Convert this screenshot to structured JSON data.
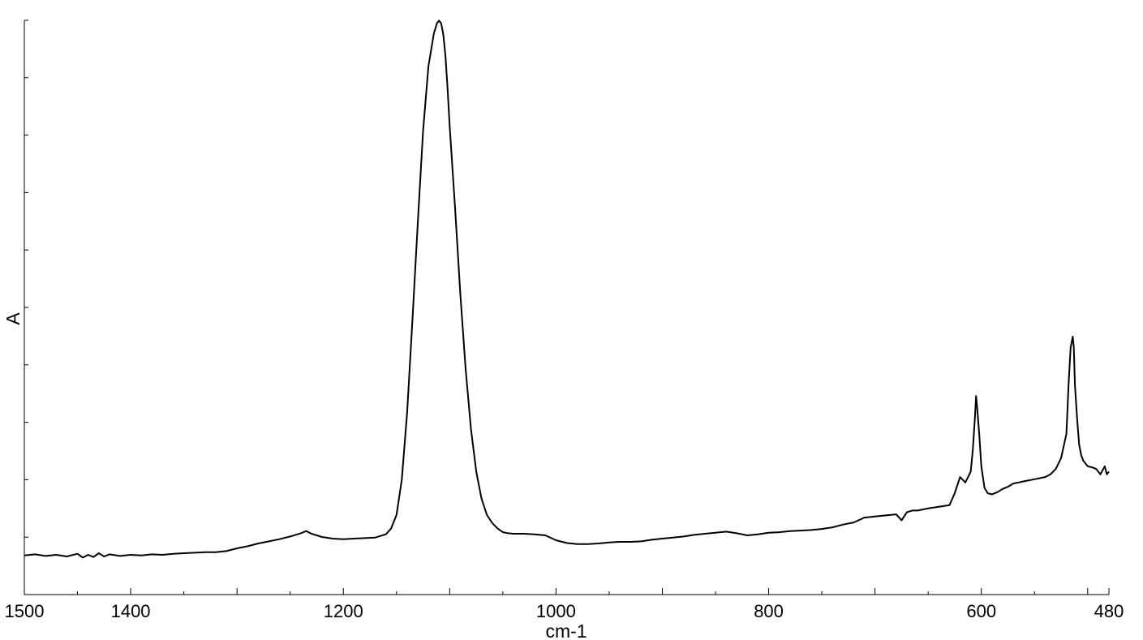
{
  "chart_data": {
    "type": "line",
    "title": "",
    "xlabel": "cm-1",
    "ylabel": "A",
    "xlim": [
      1500,
      480
    ],
    "x_reversed": true,
    "ylim": [
      0,
      1
    ],
    "grid": false,
    "legend": "none",
    "x_ticks": [
      1500,
      1400,
      1200,
      1000,
      800,
      600,
      480
    ],
    "line_color": "#000000",
    "series": [
      {
        "x": [
          1500,
          1490,
          1480,
          1470,
          1460,
          1450,
          1445,
          1440,
          1435,
          1430,
          1425,
          1420,
          1410,
          1400,
          1390,
          1380,
          1370,
          1360,
          1350,
          1340,
          1330,
          1320,
          1310,
          1300,
          1290,
          1280,
          1270,
          1260,
          1250,
          1240,
          1235,
          1230,
          1225,
          1220,
          1210,
          1200,
          1190,
          1180,
          1170,
          1160,
          1155,
          1150,
          1145,
          1140,
          1135,
          1130,
          1125,
          1120,
          1115,
          1112,
          1110,
          1108,
          1106,
          1104,
          1102,
          1100,
          1095,
          1090,
          1085,
          1080,
          1075,
          1070,
          1065,
          1060,
          1055,
          1050,
          1045,
          1040,
          1030,
          1020,
          1010,
          1000,
          990,
          980,
          970,
          960,
          950,
          940,
          930,
          920,
          910,
          900,
          890,
          880,
          870,
          860,
          850,
          840,
          830,
          820,
          810,
          800,
          790,
          780,
          770,
          760,
          750,
          740,
          730,
          720,
          710,
          700,
          690,
          680,
          675,
          670,
          665,
          660,
          650,
          640,
          630,
          625,
          620,
          615,
          612,
          610,
          608,
          606,
          605,
          604,
          602,
          600,
          597,
          594,
          590,
          585,
          580,
          575,
          570,
          565,
          560,
          555,
          550,
          545,
          540,
          535,
          530,
          525,
          520,
          518,
          516,
          514,
          513,
          512,
          510,
          508,
          506,
          504,
          502,
          500,
          496,
          492,
          488,
          484,
          482,
          480
        ],
        "y": [
          0.035,
          0.037,
          0.034,
          0.036,
          0.033,
          0.038,
          0.031,
          0.036,
          0.032,
          0.039,
          0.033,
          0.037,
          0.034,
          0.036,
          0.035,
          0.037,
          0.036,
          0.038,
          0.039,
          0.04,
          0.041,
          0.041,
          0.043,
          0.048,
          0.052,
          0.057,
          0.061,
          0.065,
          0.07,
          0.076,
          0.08,
          0.075,
          0.072,
          0.069,
          0.066,
          0.065,
          0.066,
          0.067,
          0.068,
          0.074,
          0.085,
          0.11,
          0.175,
          0.3,
          0.47,
          0.65,
          0.82,
          0.94,
          1.0,
          1.02,
          1.025,
          1.02,
          1.0,
          0.96,
          0.9,
          0.83,
          0.68,
          0.52,
          0.38,
          0.27,
          0.19,
          0.14,
          0.11,
          0.095,
          0.085,
          0.078,
          0.076,
          0.075,
          0.075,
          0.074,
          0.072,
          0.063,
          0.058,
          0.056,
          0.056,
          0.057,
          0.059,
          0.06,
          0.06,
          0.061,
          0.064,
          0.066,
          0.068,
          0.07,
          0.073,
          0.075,
          0.077,
          0.079,
          0.076,
          0.072,
          0.074,
          0.077,
          0.078,
          0.08,
          0.081,
          0.082,
          0.084,
          0.087,
          0.092,
          0.096,
          0.105,
          0.107,
          0.109,
          0.111,
          0.1,
          0.115,
          0.118,
          0.118,
          0.122,
          0.125,
          0.128,
          0.15,
          0.18,
          0.17,
          0.182,
          0.19,
          0.23,
          0.29,
          0.33,
          0.31,
          0.26,
          0.2,
          0.16,
          0.15,
          0.148,
          0.152,
          0.158,
          0.162,
          0.168,
          0.17,
          0.172,
          0.174,
          0.176,
          0.178,
          0.18,
          0.185,
          0.195,
          0.215,
          0.26,
          0.35,
          0.42,
          0.44,
          0.42,
          0.35,
          0.29,
          0.24,
          0.22,
          0.21,
          0.205,
          0.2,
          0.198,
          0.195,
          0.185,
          0.2,
          0.185,
          0.19
        ]
      }
    ]
  }
}
